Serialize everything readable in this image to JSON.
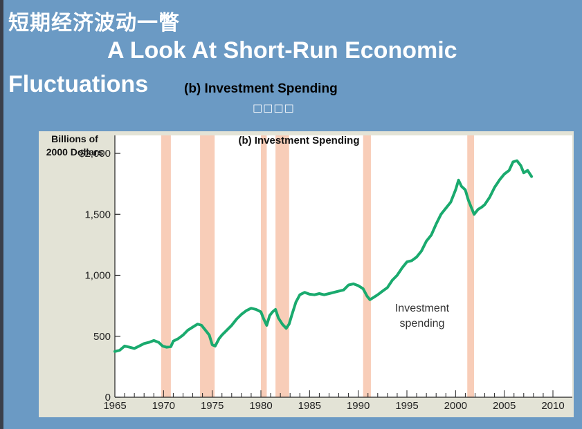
{
  "slide": {
    "title_cn": "短期经济波动一瞥",
    "title_en_line1": "A Look At Short-Run Economic",
    "title_en_line2": "Fluctuations",
    "subtitle": "(b) Investment Spending",
    "placeholder": "□□□□"
  },
  "chart_data": {
    "type": "line",
    "title": "(b) Investment Spending",
    "ylabel_line1": "Billions of",
    "ylabel_line2": "2000 Dollars",
    "xlabel": "",
    "xlim": [
      1965,
      2010
    ],
    "ylim": [
      0,
      2000
    ],
    "x_ticks": [
      1965,
      1970,
      1975,
      1980,
      1985,
      1990,
      1995,
      2000,
      2005,
      2010
    ],
    "x_tick_labels": [
      "1965",
      "1970",
      "1975",
      "1980",
      "1985",
      "1990",
      "1995",
      "2000",
      "2005",
      "2010"
    ],
    "y_ticks": [
      0,
      500,
      1000,
      1500,
      2000
    ],
    "y_tick_labels": [
      "0",
      "500",
      "1,000",
      "1,500",
      "$2,000"
    ],
    "recessions": [
      [
        1969.75,
        1970.75
      ],
      [
        1973.75,
        1975.25
      ],
      [
        1980.0,
        1980.6
      ],
      [
        1981.5,
        1982.9
      ],
      [
        1990.5,
        1991.3
      ],
      [
        2001.2,
        2001.9
      ]
    ],
    "annotation_line1": "Investment",
    "annotation_line2": "spending",
    "colors": {
      "line": "#1aaa6e",
      "recession": "#f8cdb8",
      "panel": "#e3e3d6",
      "plot_bg": "#ffffff"
    },
    "series": [
      {
        "x": [
          1965.0,
          1965.5,
          1966.0,
          1966.5,
          1967.0,
          1967.5,
          1968.0,
          1968.5,
          1969.0,
          1969.5,
          1969.9,
          1970.3,
          1970.75,
          1971.0,
          1971.5,
          1972.0,
          1972.5,
          1973.0,
          1973.5,
          1973.9,
          1974.3,
          1974.7,
          1975.0,
          1975.3,
          1975.7,
          1976.0,
          1976.5,
          1977.0,
          1977.5,
          1978.0,
          1978.5,
          1979.0,
          1979.5,
          1980.0,
          1980.3,
          1980.6,
          1980.9,
          1981.2,
          1981.5,
          1981.8,
          1982.2,
          1982.6,
          1982.9,
          1983.2,
          1983.6,
          1984.0,
          1984.5,
          1985.0,
          1985.5,
          1986.0,
          1986.5,
          1987.0,
          1987.5,
          1988.0,
          1988.5,
          1989.0,
          1989.5,
          1990.0,
          1990.5,
          1990.9,
          1991.2,
          1991.6,
          1992.0,
          1992.5,
          1993.0,
          1993.5,
          1994.0,
          1994.5,
          1995.0,
          1995.5,
          1996.0,
          1996.5,
          1997.0,
          1997.5,
          1998.0,
          1998.5,
          1999.0,
          1999.5,
          2000.0,
          2000.3,
          2000.6,
          2001.0,
          2001.3,
          2001.6,
          2001.9,
          2002.3,
          2002.7,
          2003.0,
          2003.5,
          2004.0,
          2004.5,
          2005.0,
          2005.5,
          2005.9,
          2006.3,
          2006.7,
          2007.0,
          2007.4,
          2007.8
        ],
        "y": [
          375,
          385,
          420,
          410,
          400,
          420,
          440,
          450,
          465,
          450,
          420,
          410,
          415,
          460,
          480,
          510,
          550,
          575,
          600,
          590,
          550,
          510,
          430,
          420,
          480,
          510,
          550,
          590,
          640,
          680,
          710,
          730,
          720,
          700,
          640,
          590,
          670,
          700,
          720,
          650,
          600,
          565,
          600,
          680,
          780,
          840,
          860,
          845,
          840,
          850,
          840,
          850,
          860,
          870,
          880,
          920,
          930,
          915,
          890,
          830,
          800,
          820,
          840,
          870,
          900,
          960,
          1000,
          1060,
          1110,
          1120,
          1150,
          1200,
          1280,
          1330,
          1420,
          1500,
          1550,
          1600,
          1700,
          1780,
          1730,
          1700,
          1620,
          1560,
          1500,
          1540,
          1560,
          1580,
          1640,
          1720,
          1780,
          1830,
          1860,
          1930,
          1940,
          1900,
          1840,
          1860,
          1810
        ]
      }
    ]
  }
}
